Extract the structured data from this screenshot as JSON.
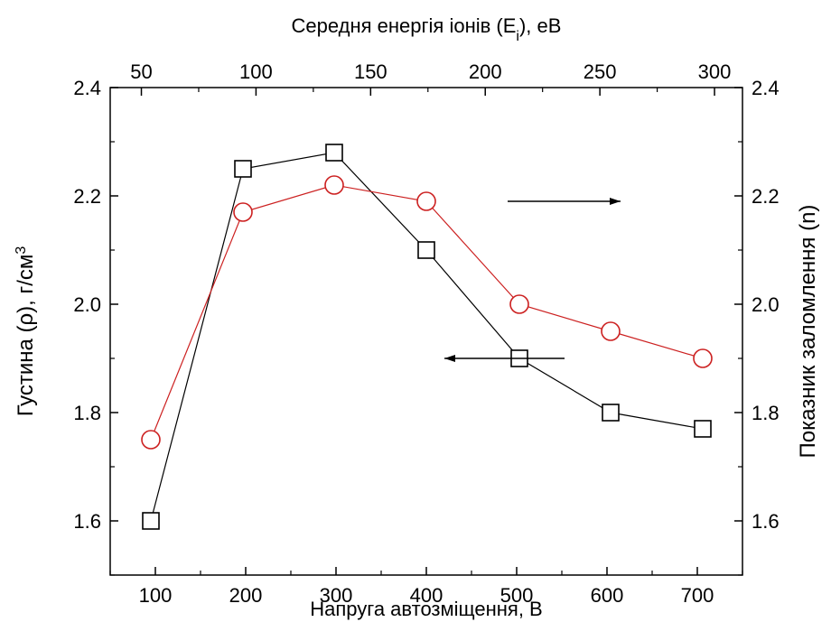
{
  "chart_data": {
    "type": "line",
    "title": "",
    "x": [
      95,
      197,
      298,
      400,
      503,
      604,
      706
    ],
    "xlabel_bottom": "Напруга автозміщення, В",
    "xlabel_top_prefix": "Середня енергія іонів (E",
    "xlabel_top_sub": "i",
    "xlabel_top_suffix": "), еВ",
    "ylabel_left_prefix": "Густина (ρ), г/см",
    "ylabel_left_sup": "3",
    "ylabel_right": "Показник заломлення (n)",
    "xlim": [
      50,
      750
    ],
    "ylim": [
      1.5,
      2.4
    ],
    "top_xlim": [
      36.4,
      312.2
    ],
    "x_ticks": [
      "100",
      "200",
      "300",
      "400",
      "500",
      "600",
      "700"
    ],
    "x_tick_values": [
      100,
      200,
      300,
      400,
      500,
      600,
      700
    ],
    "top_ticks": [
      "50",
      "100",
      "150",
      "200",
      "250",
      "300"
    ],
    "top_tick_values": [
      50,
      100,
      150,
      200,
      250,
      300
    ],
    "y_ticks": [
      "1.6",
      "1.8",
      "2.0",
      "2.2",
      "2.4"
    ],
    "y_tick_values": [
      1.6,
      1.8,
      2.0,
      2.2,
      2.4
    ],
    "series": [
      {
        "axis": "left",
        "marker": "square",
        "color": "#000000",
        "values": [
          1.6,
          2.25,
          2.28,
          2.1,
          1.9,
          1.8,
          1.77
        ]
      },
      {
        "axis": "right",
        "marker": "circle",
        "color": "#cc2020",
        "values": [
          1.75,
          2.17,
          2.22,
          2.19,
          2.0,
          1.95,
          1.9
        ]
      }
    ],
    "annotations": [
      {
        "type": "arrow",
        "direction": "left",
        "from": [
          553,
          1.9
        ],
        "to": [
          420,
          1.9
        ]
      },
      {
        "type": "arrow",
        "direction": "right",
        "from": [
          490,
          2.19
        ],
        "to": [
          615,
          2.19
        ]
      }
    ],
    "grid": false
  }
}
